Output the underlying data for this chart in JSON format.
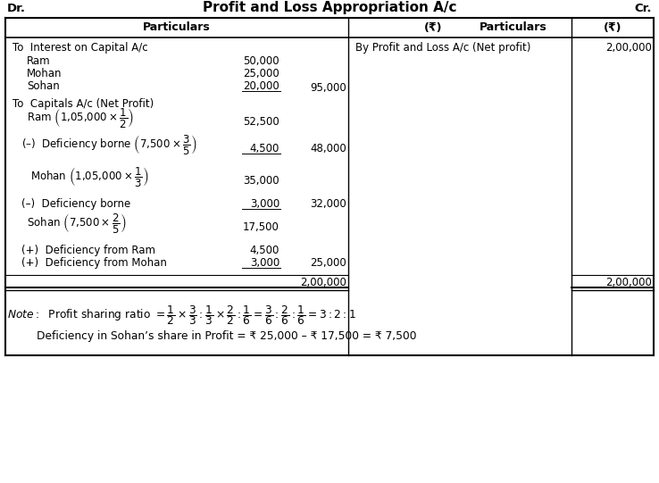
{
  "title": "Profit and Loss Appropriation A/c",
  "dr_label": "Dr.",
  "cr_label": "Cr.",
  "bg_color": "#ffffff",
  "note_line2": "Deficiency in Sohan’s share in Profit = ₹ 25,000 – ₹ 17,500 = ₹ 7,500"
}
